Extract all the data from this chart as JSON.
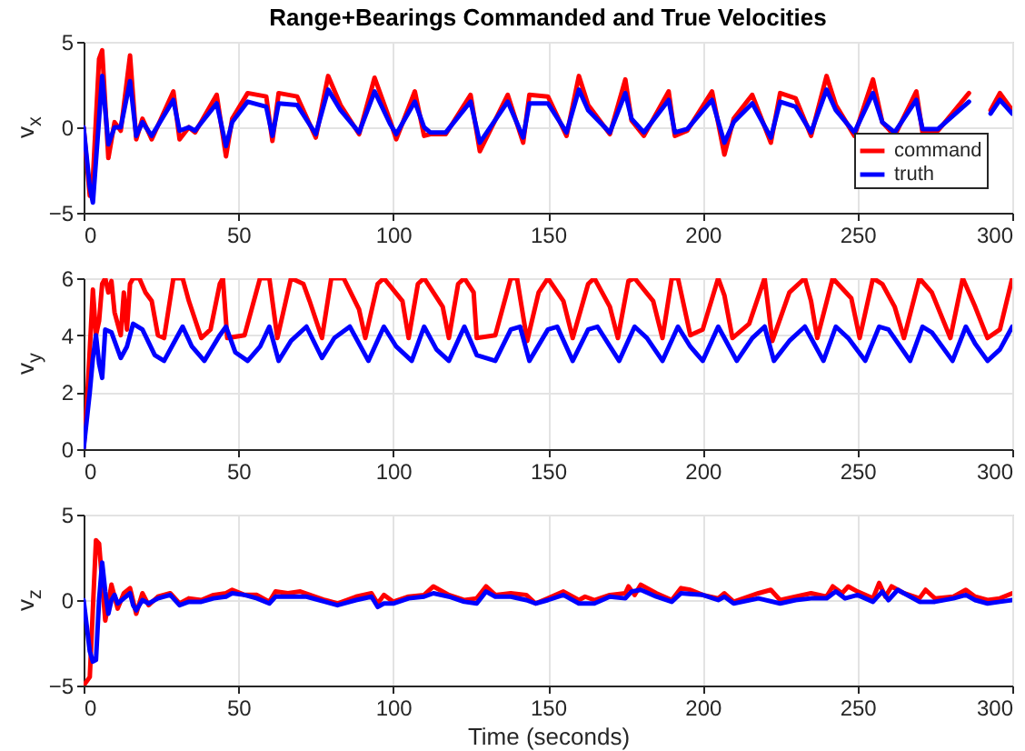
{
  "chart_data": [
    {
      "type": "line",
      "title": "Range+Bearings Commanded and True Velocities",
      "ylabel": "v$_{x}$",
      "xlim": [
        0,
        300
      ],
      "xticks": [
        0,
        50,
        100,
        150,
        200,
        250,
        300
      ],
      "ylim": [
        -5,
        5
      ],
      "yticks": [
        -5,
        0,
        5
      ],
      "grid": true,
      "legend": "bottom right",
      "series": [
        {
          "name": "command",
          "color": "#ff0000",
          "x": [
            0,
            2,
            3,
            5,
            6,
            8,
            10,
            12,
            15,
            17,
            19,
            22,
            29,
            31,
            34,
            36,
            43,
            46,
            48,
            53,
            59,
            61,
            63,
            69,
            75,
            79,
            83,
            89,
            94,
            99,
            101,
            107,
            110,
            112,
            117,
            125,
            128,
            137,
            142,
            144,
            150,
            156,
            160,
            163,
            170,
            175,
            177,
            181,
            189,
            191,
            195,
            203,
            207,
            210,
            216,
            222,
            225,
            230,
            235,
            240,
            243,
            249,
            255,
            258,
            262,
            269,
            271,
            276,
            286,
            289,
            293,
            296,
            300
          ],
          "values": [
            0,
            -4,
            -3,
            4,
            4.5,
            -1.8,
            0.3,
            -0.2,
            4.2,
            -0.7,
            0.5,
            -0.7,
            2.1,
            -0.7,
            0,
            -0.3,
            1.9,
            -1.7,
            0.5,
            2,
            1.8,
            -0.8,
            2,
            1.8,
            -0.6,
            3,
            1.3,
            -0.4,
            2.9,
            0.4,
            -0.7,
            2.1,
            -0.5,
            -0.4,
            -0.4,
            1.9,
            -1.4,
            1.9,
            -0.9,
            1.9,
            1.8,
            -0.5,
            3,
            1.3,
            -0.4,
            2.8,
            0.4,
            -0.5,
            2.1,
            -0.5,
            -0.2,
            2.1,
            -1.6,
            0.5,
            1.9,
            -0.9,
            2,
            1.7,
            -0.5,
            3,
            1.3,
            -0.5,
            2.8,
            0.3,
            -0.5,
            2.1,
            -0.3,
            -0.2,
            2,
            null,
            1,
            2,
            1
          ]
        },
        {
          "name": "truth",
          "color": "#0000ff",
          "x": [
            0,
            2,
            3,
            5,
            6,
            8,
            10,
            12,
            15,
            17,
            19,
            22,
            29,
            31,
            34,
            36,
            43,
            46,
            48,
            53,
            59,
            61,
            63,
            69,
            75,
            79,
            83,
            89,
            94,
            99,
            101,
            107,
            110,
            112,
            117,
            125,
            128,
            137,
            142,
            144,
            150,
            156,
            160,
            163,
            170,
            175,
            177,
            181,
            189,
            191,
            195,
            203,
            207,
            210,
            216,
            222,
            225,
            230,
            235,
            240,
            243,
            249,
            255,
            258,
            262,
            269,
            271,
            276,
            286,
            289,
            293,
            296,
            300
          ],
          "values": [
            0,
            -3.5,
            -4.4,
            0.5,
            3,
            -1,
            0,
            0,
            2.7,
            -0.5,
            0.3,
            -0.5,
            1.6,
            -0.2,
            0,
            -0.2,
            1.4,
            -1.1,
            0.3,
            1.5,
            1.2,
            -0.5,
            1.4,
            1.3,
            -0.4,
            2.2,
            1,
            -0.3,
            2.1,
            0.2,
            -0.4,
            1.5,
            0,
            -0.3,
            -0.3,
            1.5,
            -0.9,
            1.5,
            -0.6,
            1.4,
            1.4,
            -0.3,
            2.2,
            1,
            -0.3,
            2,
            0.5,
            -0.3,
            1.6,
            -0.3,
            -0.1,
            1.6,
            -0.9,
            0.3,
            1.4,
            -0.6,
            1.5,
            1.2,
            -0.3,
            2.2,
            1,
            -0.3,
            2,
            0.3,
            -0.3,
            1.6,
            -0.1,
            -0.1,
            1.5,
            null,
            0.8,
            1.6,
            0.8
          ]
        }
      ]
    },
    {
      "type": "line",
      "ylabel": "v$_{y}$",
      "xlim": [
        0,
        300
      ],
      "xticks": [
        0,
        50,
        100,
        150,
        200,
        250,
        300
      ],
      "ylim": [
        0,
        6
      ],
      "yticks": [
        0,
        2,
        4,
        6
      ],
      "grid": true,
      "series": [
        {
          "color": "#ff0000",
          "x": [
            0,
            1,
            2,
            3,
            4,
            5,
            6,
            7,
            8,
            9,
            10,
            12,
            13,
            14,
            15,
            16,
            18,
            20,
            22,
            24,
            26,
            29,
            32,
            34,
            38,
            41,
            44,
            45,
            46.4,
            52,
            57,
            60,
            62.6,
            67,
            71,
            73,
            77,
            80,
            84,
            89,
            91,
            95,
            97,
            103,
            105,
            108,
            110,
            116,
            118,
            121,
            123,
            126,
            127,
            133,
            138,
            140,
            143.3,
            147,
            150,
            155,
            158,
            163,
            165,
            170,
            172.6,
            176,
            178,
            184,
            187,
            190,
            192,
            196,
            200,
            205,
            207,
            209.6,
            215,
            220,
            222.5,
            228,
            233,
            235,
            237,
            242,
            248,
            250.7,
            255,
            258,
            262,
            265,
            270,
            274,
            280,
            284,
            288,
            292,
            296,
            300
          ],
          "values": [
            0,
            1.5,
            3.5,
            5.6,
            4,
            4.5,
            5.8,
            6,
            5.5,
            5.9,
            4.8,
            4,
            5.5,
            4.2,
            5.8,
            6,
            6,
            5.5,
            5.2,
            4,
            3.9,
            6,
            6,
            5.2,
            3.9,
            4.2,
            5.8,
            6,
            3.9,
            4,
            6,
            6,
            3.9,
            6,
            5.8,
            5.2,
            3.9,
            6,
            6,
            4.9,
            3.9,
            5.8,
            6,
            5.2,
            3.9,
            5.8,
            6,
            5,
            3.9,
            5.8,
            6,
            5.5,
            3.9,
            4,
            6,
            6,
            3.8,
            5.5,
            6,
            5.2,
            3.9,
            5.8,
            6,
            5,
            3.9,
            5.9,
            6,
            5.2,
            3.9,
            6,
            6,
            4,
            4.2,
            6,
            5.4,
            3.9,
            4.4,
            6,
            3.8,
            5.5,
            6,
            5.2,
            3.9,
            6,
            5.3,
            3.9,
            6,
            5.8,
            5,
            3.9,
            6,
            5.5,
            3.9,
            6,
            5,
            3.9,
            4.2,
            6
          ]
        },
        {
          "color": "#0000ff",
          "x": [
            0,
            2,
            3,
            4,
            5,
            6,
            7,
            9,
            12,
            14,
            16,
            19,
            23,
            26,
            29,
            32,
            35,
            39,
            44,
            46,
            49,
            53,
            57,
            60,
            63,
            67,
            72,
            77,
            81,
            86,
            92,
            97,
            101,
            106,
            110,
            114,
            118,
            123,
            127,
            133,
            138,
            141,
            144,
            150,
            153,
            158,
            163,
            166,
            173,
            178,
            182,
            187,
            192,
            196,
            200,
            205,
            208,
            211,
            216,
            220,
            223,
            228,
            233,
            239,
            243,
            247,
            252.5,
            257,
            260,
            267,
            271,
            274,
            280.7,
            285,
            288,
            292,
            296,
            300
          ],
          "values": [
            0,
            2,
            3.2,
            4,
            3,
            2.5,
            4.2,
            4.1,
            3.2,
            3.6,
            4.4,
            4.2,
            3.3,
            3.1,
            3.7,
            4.3,
            3.6,
            3.1,
            4,
            4.3,
            3.4,
            3.1,
            3.6,
            4.3,
            3.1,
            3.8,
            4.3,
            3.2,
            3.9,
            4.3,
            3.1,
            4.3,
            3.6,
            3.1,
            4.3,
            3.5,
            3.1,
            4.3,
            3.3,
            3.1,
            4.2,
            4.3,
            3.1,
            4.2,
            4.3,
            3.1,
            4.2,
            4.3,
            3.1,
            4.3,
            3.9,
            3.1,
            4.3,
            3.6,
            3.1,
            4.3,
            3.7,
            3.1,
            3.9,
            4.3,
            3.1,
            3.8,
            4.3,
            3.1,
            4.3,
            3.9,
            3.1,
            4.3,
            4.2,
            3.1,
            4.3,
            4.1,
            3.1,
            4.3,
            3.7,
            3.1,
            3.5,
            4.3
          ]
        }
      ]
    },
    {
      "type": "line",
      "ylabel": "v$_{z}$",
      "xlabel": "Time (seconds)",
      "xlim": [
        0,
        300
      ],
      "xticks": [
        0,
        50,
        100,
        150,
        200,
        250,
        300
      ],
      "ylim": [
        -5,
        5
      ],
      "yticks": [
        -5,
        0,
        5
      ],
      "grid": true,
      "series": [
        {
          "color": "#ff0000",
          "x": [
            0,
            2,
            4,
            5,
            7,
            9,
            11,
            13,
            15,
            17,
            19,
            21,
            24,
            28,
            31,
            34,
            38,
            42,
            46,
            48,
            52,
            56,
            60,
            62,
            66,
            70,
            78,
            82,
            88,
            93,
            95,
            97,
            100,
            105,
            110,
            113,
            118,
            123,
            127,
            130,
            133,
            138,
            143,
            146,
            150,
            155,
            160,
            162,
            165,
            170,
            175,
            176,
            178,
            180,
            185,
            190,
            193,
            196,
            200,
            205,
            207,
            210,
            218,
            222,
            225,
            230,
            235,
            240,
            242,
            245,
            247,
            250,
            255,
            257,
            259,
            261,
            265,
            270,
            272,
            275,
            281,
            285,
            288,
            292,
            296,
            300
          ],
          "values": [
            -5,
            -4.5,
            3.5,
            3.3,
            -1.2,
            0.9,
            -0.5,
            0.4,
            0.7,
            -0.8,
            0.4,
            -0.3,
            0.2,
            0.4,
            -0.2,
            0.1,
            0,
            0.3,
            0.4,
            0.6,
            0.3,
            0.3,
            -0.1,
            0.5,
            0.4,
            0.5,
            0,
            -0.2,
            0.2,
            0.4,
            -0.2,
            0.3,
            -0.1,
            0.2,
            0.3,
            0.8,
            0.3,
            0,
            0.1,
            0.8,
            0.3,
            0.4,
            0.3,
            -0.2,
            0.1,
            0.5,
            0,
            0.2,
            0,
            0.3,
            0.4,
            0.8,
            0.3,
            0.9,
            0.4,
            0,
            0.7,
            0.6,
            0.3,
            0.1,
            0.4,
            -0.1,
            0.4,
            0.6,
            0,
            0.2,
            0.4,
            0.2,
            0.8,
            0.4,
            0.8,
            0.5,
            0.1,
            1,
            0.2,
            0.8,
            0.4,
            0.1,
            0.6,
            0.1,
            0.2,
            0.6,
            0.2,
            0,
            0.1,
            0.4
          ]
        },
        {
          "color": "#0000ff",
          "x": [
            0,
            2,
            3,
            4,
            5,
            6,
            7,
            8,
            9,
            10,
            11,
            13,
            15,
            16,
            17,
            19,
            21,
            24,
            28,
            31,
            34,
            38,
            42,
            46,
            48,
            52,
            56,
            60,
            62,
            66,
            72,
            78,
            82,
            88,
            93,
            95,
            97,
            100,
            105,
            110,
            113,
            118,
            123,
            127,
            130,
            133,
            138,
            143,
            146,
            150,
            155,
            160,
            165,
            170,
            175,
            177,
            180,
            185,
            190,
            193,
            200,
            205,
            207,
            210,
            218,
            225,
            230,
            235,
            240,
            243,
            246,
            250,
            255,
            258,
            260,
            263,
            270,
            275,
            281,
            285,
            288,
            292,
            296,
            300
          ],
          "values": [
            0,
            -3,
            -3.6,
            -3.5,
            0,
            2.2,
            0.5,
            -0.8,
            0,
            0.3,
            -0.2,
            0.1,
            0.4,
            -0.3,
            -0.6,
            0,
            -0.2,
            0.1,
            0.3,
            -0.3,
            -0.1,
            -0.1,
            0.1,
            0.2,
            0.4,
            0.3,
            0.1,
            -0.2,
            0.2,
            0.2,
            0.2,
            -0.1,
            -0.3,
            0,
            0.2,
            -0.4,
            -0.2,
            -0.2,
            0.1,
            0.2,
            0.4,
            0.2,
            -0.1,
            -0.2,
            0.5,
            0.2,
            0.2,
            0,
            -0.2,
            0,
            0.3,
            -0.2,
            -0.2,
            0.2,
            0.1,
            0.5,
            0.6,
            0.2,
            -0.1,
            0.4,
            0.3,
            0,
            0.2,
            -0.2,
            0.1,
            -0.2,
            0,
            0.1,
            0.1,
            0.5,
            0.1,
            0.3,
            -0.1,
            0.5,
            0,
            0.6,
            -0.1,
            -0.1,
            0.1,
            0.3,
            0,
            -0.2,
            -0.1,
            0
          ]
        }
      ]
    }
  ]
}
